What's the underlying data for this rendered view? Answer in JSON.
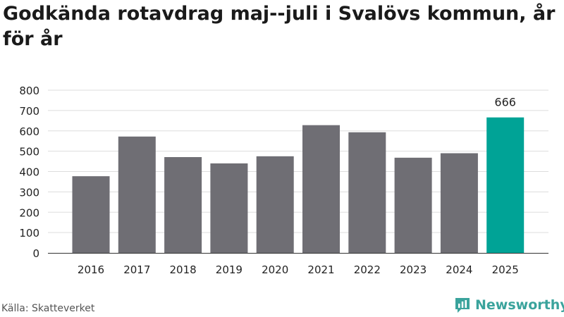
{
  "title": "Godkända rotavdrag maj--juli i Svalövs kommun, år för år",
  "source": "Källa: Skatteverket",
  "brand": "Newsworthy",
  "colors": {
    "bar": "#6f6e74",
    "highlight": "#00a396",
    "grid": "#dddddd",
    "axis": "#333333",
    "brand": "#3aa39c"
  },
  "chart_data": {
    "type": "bar",
    "title": "Godkända rotavdrag maj--juli i Svalövs kommun, år för år",
    "xlabel": "",
    "ylabel": "",
    "categories": [
      "2016",
      "2017",
      "2018",
      "2019",
      "2020",
      "2021",
      "2022",
      "2023",
      "2024",
      "2025"
    ],
    "values": [
      377,
      572,
      471,
      440,
      475,
      628,
      593,
      468,
      490,
      666
    ],
    "highlight_index": 9,
    "data_labels": [
      {
        "index": 9,
        "text": "666"
      }
    ],
    "ylim": [
      0,
      800
    ],
    "yticks": [
      0,
      100,
      200,
      300,
      400,
      500,
      600,
      700,
      800
    ],
    "grid": true,
    "legend": "none"
  }
}
